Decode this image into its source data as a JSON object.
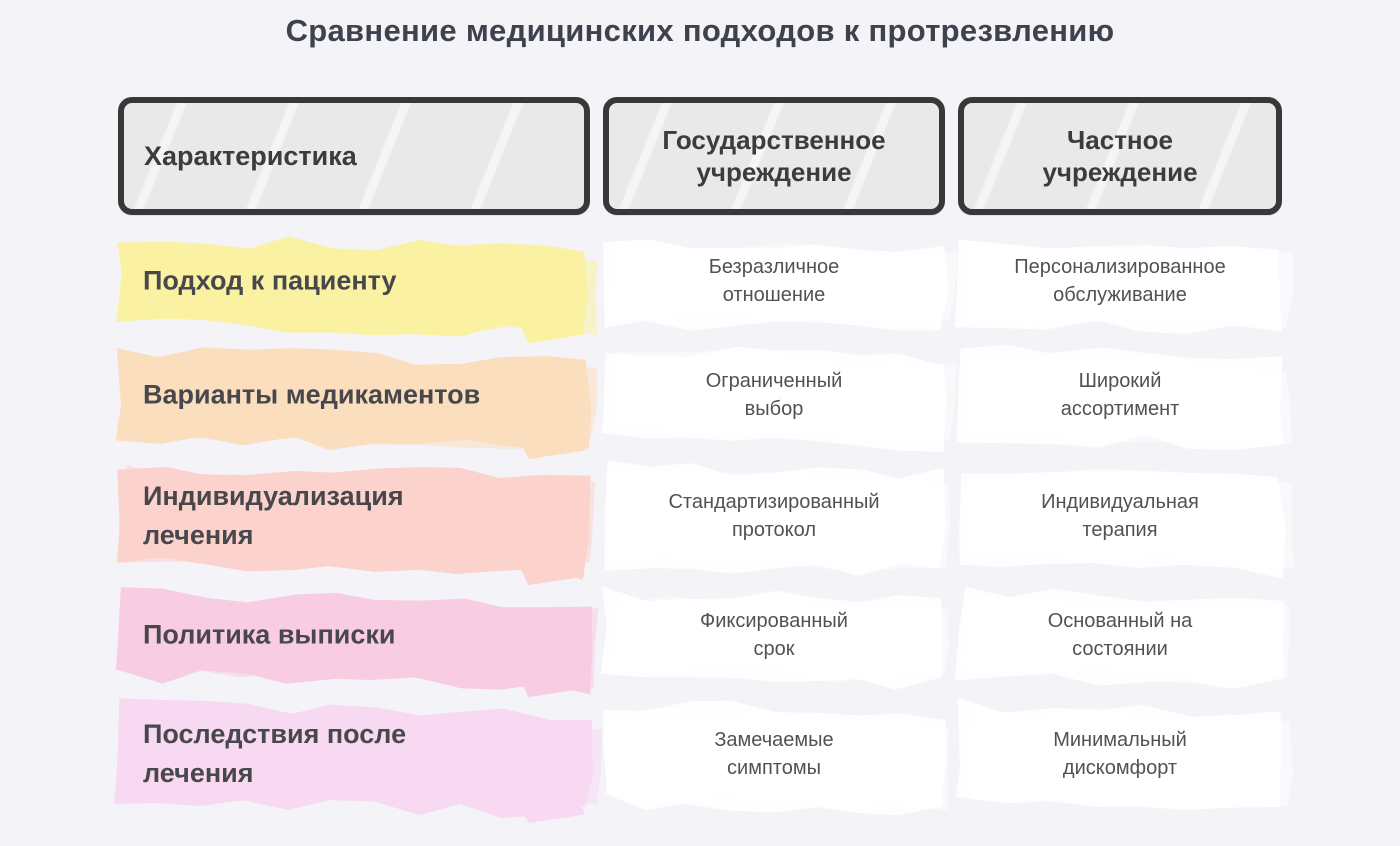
{
  "title": "Сравнение медицинских подходов к протрезвлению",
  "table": {
    "columns": [
      {
        "label": "Характеристика"
      },
      {
        "label": "Государственное\nучреждение"
      },
      {
        "label": "Частное\nучреждение"
      }
    ],
    "rows": [
      {
        "feature": "Подход к пациенту",
        "state": "Безразличное\nотношение",
        "private": "Персонализированное\nобслуживание",
        "highlight": "#faf2a2"
      },
      {
        "feature": "Варианты медикаментов",
        "state": "Ограниченный\nвыбор",
        "private": "Широкий\nассортимент",
        "highlight": "#fbdebd"
      },
      {
        "feature": "Индивидуализация\nлечения",
        "state": "Стандартизированный\nпротокол",
        "private": "Индивидуальная\nтерапия",
        "highlight": "#fbd2cc"
      },
      {
        "feature": "Политика выписки",
        "state": "Фиксированный\nсрок",
        "private": "Основанный на\nсостоянии",
        "highlight": "#f8cde3"
      },
      {
        "feature": "Последствия после\nлечения",
        "state": "Замечаемые\nсимптомы",
        "private": "Минимальный\nдискомфорт",
        "highlight": "#f8d9f2"
      }
    ]
  },
  "colors": {
    "background": "#f3f3f8",
    "header_fill": "#e9e9e9",
    "header_border": "#383838",
    "header_text": "#3b3c40",
    "title_text": "#3e424c",
    "label_text": "#48484c",
    "value_text": "#515157",
    "cell_fill": "#ffffff"
  }
}
